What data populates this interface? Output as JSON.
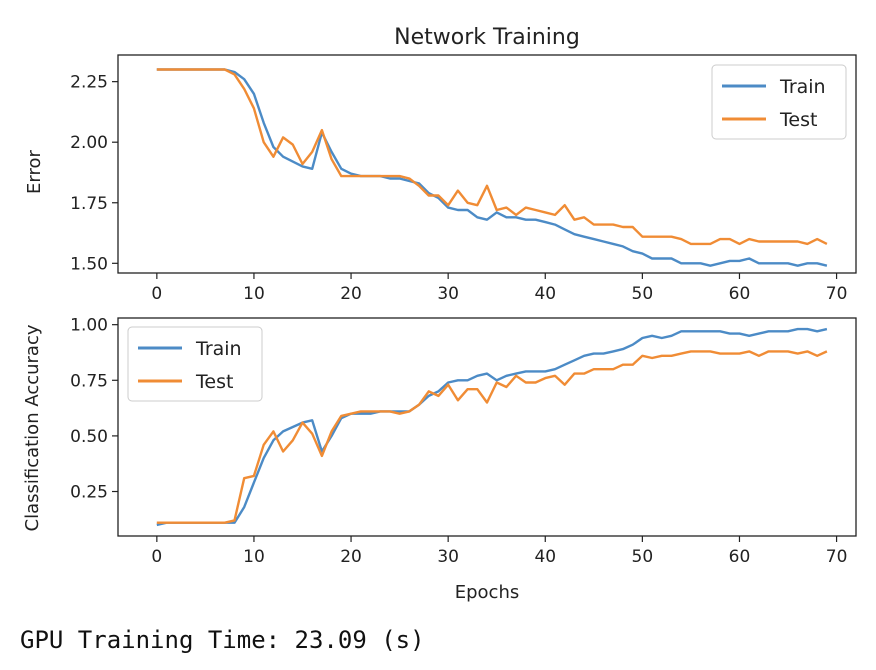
{
  "figure_title": "Network Training",
  "output_text": "GPU Training Time: 23.09 (s)",
  "colors": {
    "train": "#4c8bc6",
    "test": "#f08c35"
  },
  "chart_data": [
    {
      "type": "line",
      "title": "Network Training",
      "xlabel": "",
      "ylabel": "Error",
      "xlim": [
        -4,
        72
      ],
      "ylim": [
        1.46,
        2.36
      ],
      "xticks": [
        0,
        10,
        20,
        30,
        40,
        50,
        60,
        70
      ],
      "yticks": [
        1.5,
        1.75,
        2.0,
        2.25
      ],
      "ytick_labels": [
        "1.50",
        "1.75",
        "2.00",
        "2.25"
      ],
      "legend": "top-right",
      "series": [
        {
          "name": "Train",
          "color": "#4c8bc6",
          "x": [
            0,
            1,
            2,
            3,
            4,
            5,
            6,
            7,
            8,
            9,
            10,
            11,
            12,
            13,
            14,
            15,
            16,
            17,
            18,
            19,
            20,
            21,
            22,
            23,
            24,
            25,
            26,
            27,
            28,
            29,
            30,
            31,
            32,
            33,
            34,
            35,
            36,
            37,
            38,
            39,
            40,
            41,
            42,
            43,
            44,
            45,
            46,
            47,
            48,
            49,
            50,
            51,
            52,
            53,
            54,
            55,
            56,
            57,
            58,
            59,
            60,
            61,
            62,
            63,
            64,
            65,
            66,
            67,
            68,
            69
          ],
          "values": [
            2.3,
            2.3,
            2.3,
            2.3,
            2.3,
            2.3,
            2.3,
            2.3,
            2.29,
            2.26,
            2.2,
            2.08,
            1.98,
            1.94,
            1.92,
            1.9,
            1.89,
            2.04,
            1.96,
            1.89,
            1.87,
            1.86,
            1.86,
            1.86,
            1.85,
            1.85,
            1.84,
            1.83,
            1.79,
            1.77,
            1.73,
            1.72,
            1.72,
            1.69,
            1.68,
            1.71,
            1.69,
            1.69,
            1.68,
            1.68,
            1.67,
            1.66,
            1.64,
            1.62,
            1.61,
            1.6,
            1.59,
            1.58,
            1.57,
            1.55,
            1.54,
            1.52,
            1.52,
            1.52,
            1.5,
            1.5,
            1.5,
            1.49,
            1.5,
            1.51,
            1.51,
            1.52,
            1.5,
            1.5,
            1.5,
            1.5,
            1.49,
            1.5,
            1.5,
            1.49
          ]
        },
        {
          "name": "Test",
          "color": "#f08c35",
          "x": [
            0,
            1,
            2,
            3,
            4,
            5,
            6,
            7,
            8,
            9,
            10,
            11,
            12,
            13,
            14,
            15,
            16,
            17,
            18,
            19,
            20,
            21,
            22,
            23,
            24,
            25,
            26,
            27,
            28,
            29,
            30,
            31,
            32,
            33,
            34,
            35,
            36,
            37,
            38,
            39,
            40,
            41,
            42,
            43,
            44,
            45,
            46,
            47,
            48,
            49,
            50,
            51,
            52,
            53,
            54,
            55,
            56,
            57,
            58,
            59,
            60,
            61,
            62,
            63,
            64,
            65,
            66,
            67,
            68,
            69
          ],
          "values": [
            2.3,
            2.3,
            2.3,
            2.3,
            2.3,
            2.3,
            2.3,
            2.3,
            2.28,
            2.22,
            2.14,
            2.0,
            1.94,
            2.02,
            1.99,
            1.91,
            1.96,
            2.05,
            1.93,
            1.86,
            1.86,
            1.86,
            1.86,
            1.86,
            1.86,
            1.86,
            1.85,
            1.82,
            1.78,
            1.78,
            1.74,
            1.8,
            1.75,
            1.74,
            1.82,
            1.72,
            1.73,
            1.7,
            1.73,
            1.72,
            1.71,
            1.7,
            1.74,
            1.68,
            1.69,
            1.66,
            1.66,
            1.66,
            1.65,
            1.65,
            1.61,
            1.61,
            1.61,
            1.61,
            1.6,
            1.58,
            1.58,
            1.58,
            1.6,
            1.6,
            1.58,
            1.6,
            1.59,
            1.59,
            1.59,
            1.59,
            1.59,
            1.58,
            1.6,
            1.58
          ]
        }
      ]
    },
    {
      "type": "line",
      "title": "",
      "xlabel": "Epochs",
      "ylabel": "Classification Accuracy",
      "xlim": [
        -4,
        72
      ],
      "ylim": [
        0.05,
        1.03
      ],
      "xticks": [
        0,
        10,
        20,
        30,
        40,
        50,
        60,
        70
      ],
      "yticks": [
        0.25,
        0.5,
        0.75,
        1.0
      ],
      "ytick_labels": [
        "0.25",
        "0.50",
        "0.75",
        "1.00"
      ],
      "legend": "top-left",
      "series": [
        {
          "name": "Train",
          "color": "#4c8bc6",
          "x": [
            0,
            1,
            2,
            3,
            4,
            5,
            6,
            7,
            8,
            9,
            10,
            11,
            12,
            13,
            14,
            15,
            16,
            17,
            18,
            19,
            20,
            21,
            22,
            23,
            24,
            25,
            26,
            27,
            28,
            29,
            30,
            31,
            32,
            33,
            34,
            35,
            36,
            37,
            38,
            39,
            40,
            41,
            42,
            43,
            44,
            45,
            46,
            47,
            48,
            49,
            50,
            51,
            52,
            53,
            54,
            55,
            56,
            57,
            58,
            59,
            60,
            61,
            62,
            63,
            64,
            65,
            66,
            67,
            68,
            69
          ],
          "values": [
            0.1,
            0.11,
            0.11,
            0.11,
            0.11,
            0.11,
            0.11,
            0.11,
            0.11,
            0.18,
            0.29,
            0.4,
            0.48,
            0.52,
            0.54,
            0.56,
            0.57,
            0.43,
            0.5,
            0.58,
            0.6,
            0.6,
            0.6,
            0.61,
            0.61,
            0.61,
            0.61,
            0.64,
            0.68,
            0.7,
            0.74,
            0.75,
            0.75,
            0.77,
            0.78,
            0.75,
            0.77,
            0.78,
            0.79,
            0.79,
            0.79,
            0.8,
            0.82,
            0.84,
            0.86,
            0.87,
            0.87,
            0.88,
            0.89,
            0.91,
            0.94,
            0.95,
            0.94,
            0.95,
            0.97,
            0.97,
            0.97,
            0.97,
            0.97,
            0.96,
            0.96,
            0.95,
            0.96,
            0.97,
            0.97,
            0.97,
            0.98,
            0.98,
            0.97,
            0.98
          ]
        },
        {
          "name": "Test",
          "color": "#f08c35",
          "x": [
            0,
            1,
            2,
            3,
            4,
            5,
            6,
            7,
            8,
            9,
            10,
            11,
            12,
            13,
            14,
            15,
            16,
            17,
            18,
            19,
            20,
            21,
            22,
            23,
            24,
            25,
            26,
            27,
            28,
            29,
            30,
            31,
            32,
            33,
            34,
            35,
            36,
            37,
            38,
            39,
            40,
            41,
            42,
            43,
            44,
            45,
            46,
            47,
            48,
            49,
            50,
            51,
            52,
            53,
            54,
            55,
            56,
            57,
            58,
            59,
            60,
            61,
            62,
            63,
            64,
            65,
            66,
            67,
            68,
            69
          ],
          "values": [
            0.11,
            0.11,
            0.11,
            0.11,
            0.11,
            0.11,
            0.11,
            0.11,
            0.12,
            0.31,
            0.32,
            0.46,
            0.52,
            0.43,
            0.48,
            0.56,
            0.51,
            0.41,
            0.52,
            0.59,
            0.6,
            0.61,
            0.61,
            0.61,
            0.61,
            0.6,
            0.61,
            0.64,
            0.7,
            0.68,
            0.73,
            0.66,
            0.71,
            0.71,
            0.65,
            0.74,
            0.72,
            0.77,
            0.74,
            0.74,
            0.76,
            0.77,
            0.73,
            0.78,
            0.78,
            0.8,
            0.8,
            0.8,
            0.82,
            0.82,
            0.86,
            0.85,
            0.86,
            0.86,
            0.87,
            0.88,
            0.88,
            0.88,
            0.87,
            0.87,
            0.87,
            0.88,
            0.86,
            0.88,
            0.88,
            0.88,
            0.87,
            0.88,
            0.86,
            0.88
          ]
        }
      ]
    }
  ]
}
